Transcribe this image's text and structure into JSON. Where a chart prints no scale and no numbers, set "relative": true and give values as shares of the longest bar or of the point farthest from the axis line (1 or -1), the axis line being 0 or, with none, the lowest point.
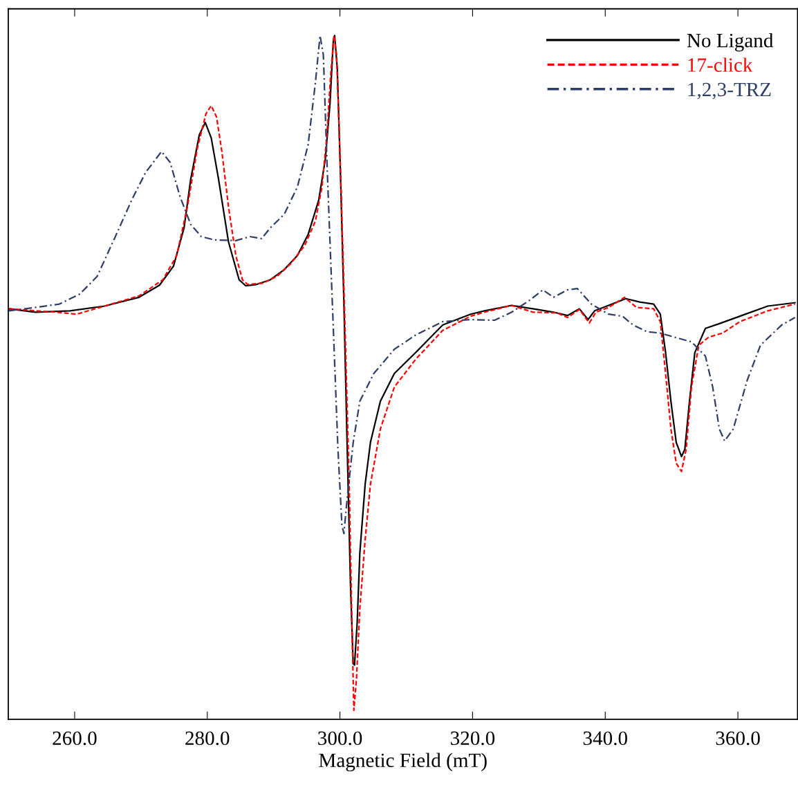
{
  "chart_data": {
    "type": "line",
    "xlabel": "Magnetic Field (mT)",
    "relative": true,
    "xlim": [
      250,
      369
    ],
    "xticks": [
      {
        "value": 260,
        "label": "260.0"
      },
      {
        "value": 280,
        "label": "280.0"
      },
      {
        "value": 300,
        "label": "300.0"
      },
      {
        "value": 320,
        "label": "320.0"
      },
      {
        "value": 340,
        "label": "340.0"
      },
      {
        "value": 360,
        "label": "360.0"
      }
    ],
    "grid": false,
    "legend": "top right",
    "marker": "none",
    "series": [
      {
        "name": "No Ligand",
        "color": "#000000",
        "line_style": "solid",
        "x": [
          250.1,
          254.1,
          259.3,
          264.5,
          269.7,
          272.8,
          274.9,
          276.5,
          277.5,
          278.8,
          279.7,
          280.6,
          281.7,
          283.2,
          284.8,
          285.8,
          287.4,
          289.5,
          291.6,
          293.6,
          295.2,
          296.8,
          297.8,
          298.5,
          299.0,
          299.2,
          299.6,
          300.1,
          300.6,
          301.1,
          301.6,
          302.0,
          302.2,
          302.6,
          303.0,
          303.8,
          304.6,
          306.1,
          308.2,
          311.4,
          315.5,
          319.7,
          321.8,
          325.9,
          329.1,
          332.2,
          334.3,
          336.1,
          337.4,
          338.4,
          340.5,
          343.1,
          345.2,
          347.3,
          348.3,
          349.1,
          349.9,
          350.7,
          351.5,
          352.0,
          352.7,
          353.5,
          355.1,
          357.2,
          360.3,
          364.5,
          368.6
        ],
        "values": [
          0.595,
          0.59,
          0.592,
          0.599,
          0.612,
          0.63,
          0.658,
          0.715,
          0.787,
          0.853,
          0.871,
          0.848,
          0.787,
          0.694,
          0.638,
          0.629,
          0.631,
          0.638,
          0.653,
          0.674,
          0.705,
          0.756,
          0.817,
          0.899,
          0.992,
          1.0,
          0.951,
          0.787,
          0.602,
          0.387,
          0.182,
          0.069,
          0.067,
          0.13,
          0.233,
          0.335,
          0.397,
          0.458,
          0.499,
          0.53,
          0.571,
          0.587,
          0.592,
          0.6,
          0.595,
          0.59,
          0.585,
          0.595,
          0.579,
          0.592,
          0.6,
          0.61,
          0.605,
          0.602,
          0.587,
          0.53,
          0.458,
          0.397,
          0.376,
          0.387,
          0.458,
          0.53,
          0.566,
          0.573,
          0.584,
          0.599,
          0.604
        ]
      },
      {
        "name": "17-click",
        "color": "#ff0000",
        "line_style": "dashed",
        "x": [
          250.1,
          254.1,
          257.2,
          260.3,
          264.5,
          269.7,
          273.3,
          275.4,
          277.0,
          278.5,
          279.8,
          280.6,
          281.4,
          282.2,
          283.2,
          284.3,
          285.3,
          286.1,
          288.4,
          290.5,
          292.6,
          294.7,
          296.3,
          297.3,
          298.0,
          298.6,
          299.1,
          299.5,
          300.1,
          300.7,
          301.4,
          301.8,
          302.1,
          302.5,
          303.0,
          303.8,
          304.6,
          306.1,
          308.2,
          311.4,
          315.5,
          319.7,
          321.8,
          325.9,
          329.1,
          332.7,
          334.3,
          336.1,
          337.6,
          338.6,
          340.5,
          342.9,
          344.7,
          347.3,
          348.3,
          349.1,
          349.9,
          350.7,
          351.5,
          352.2,
          353.0,
          354.1,
          355.6,
          357.7,
          360.3,
          364.5,
          368.6
        ],
        "values": [
          0.595,
          0.592,
          0.59,
          0.587,
          0.599,
          0.614,
          0.638,
          0.674,
          0.746,
          0.833,
          0.884,
          0.896,
          0.879,
          0.828,
          0.746,
          0.674,
          0.638,
          0.631,
          0.633,
          0.643,
          0.662,
          0.689,
          0.725,
          0.776,
          0.848,
          0.941,
          1.0,
          0.971,
          0.797,
          0.592,
          0.335,
          0.13,
          0.0,
          0.048,
          0.151,
          0.253,
          0.335,
          0.417,
          0.479,
          0.52,
          0.563,
          0.584,
          0.59,
          0.6,
          0.59,
          0.589,
          0.582,
          0.594,
          0.574,
          0.59,
          0.597,
          0.612,
          0.597,
          0.595,
          0.576,
          0.499,
          0.417,
          0.366,
          0.354,
          0.387,
          0.479,
          0.541,
          0.553,
          0.559,
          0.576,
          0.592,
          0.602
        ]
      },
      {
        "name": "1,2,3-TRZ",
        "color": "#2f3d66",
        "line_style": "dashdot",
        "x": [
          250.1,
          254.1,
          257.7,
          260.8,
          263.4,
          266.0,
          268.6,
          270.7,
          273.1,
          274.4,
          275.9,
          277.5,
          279.1,
          281.1,
          284.3,
          286.4,
          288.2,
          289.5,
          291.6,
          293.6,
          295.2,
          296.3,
          297.0,
          297.5,
          298.1,
          298.9,
          299.7,
          300.3,
          300.6,
          301.1,
          302.0,
          303.0,
          305.1,
          308.2,
          311.4,
          315.5,
          319.7,
          323.3,
          325.9,
          328.5,
          330.6,
          332.2,
          334.3,
          335.8,
          337.9,
          340.5,
          342.6,
          344.2,
          346.3,
          348.3,
          350.4,
          353.0,
          355.1,
          356.2,
          357.2,
          358.0,
          359.3,
          361.4,
          363.4,
          366.6,
          368.6
        ],
        "values": [
          0.592,
          0.597,
          0.602,
          0.617,
          0.643,
          0.699,
          0.756,
          0.797,
          0.828,
          0.812,
          0.761,
          0.72,
          0.702,
          0.697,
          0.696,
          0.702,
          0.699,
          0.715,
          0.735,
          0.776,
          0.838,
          0.93,
          1.0,
          0.971,
          0.797,
          0.592,
          0.387,
          0.274,
          0.262,
          0.315,
          0.397,
          0.458,
          0.499,
          0.535,
          0.556,
          0.576,
          0.579,
          0.578,
          0.59,
          0.607,
          0.623,
          0.612,
          0.623,
          0.625,
          0.602,
          0.587,
          0.584,
          0.571,
          0.561,
          0.559,
          0.553,
          0.546,
          0.525,
          0.479,
          0.417,
          0.399,
          0.417,
          0.489,
          0.541,
          0.571,
          0.582
        ]
      }
    ]
  }
}
